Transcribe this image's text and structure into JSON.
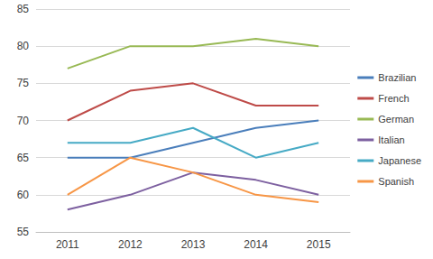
{
  "chart_data": {
    "type": "line",
    "categories": [
      "2011",
      "2012",
      "2013",
      "2014",
      "2015"
    ],
    "series": [
      {
        "name": "Brazilian",
        "color": "#4a7ebb",
        "values": [
          65,
          65,
          67,
          69,
          70
        ]
      },
      {
        "name": "French",
        "color": "#be4b48",
        "values": [
          70,
          74,
          75,
          72,
          72
        ]
      },
      {
        "name": "German",
        "color": "#98b954",
        "values": [
          77,
          80,
          80,
          81,
          80
        ]
      },
      {
        "name": "Italian",
        "color": "#7d60a0",
        "values": [
          58,
          60,
          63,
          62,
          60
        ]
      },
      {
        "name": "Japanese",
        "color": "#46aac5",
        "values": [
          67,
          67,
          69,
          65,
          67
        ]
      },
      {
        "name": "Spanish",
        "color": "#f79646",
        "values": [
          60,
          65,
          63,
          60,
          59
        ]
      }
    ],
    "ylim": [
      55,
      85
    ],
    "yticks": [
      55,
      60,
      65,
      70,
      75,
      80,
      85
    ],
    "grid": true,
    "legend": "right"
  }
}
